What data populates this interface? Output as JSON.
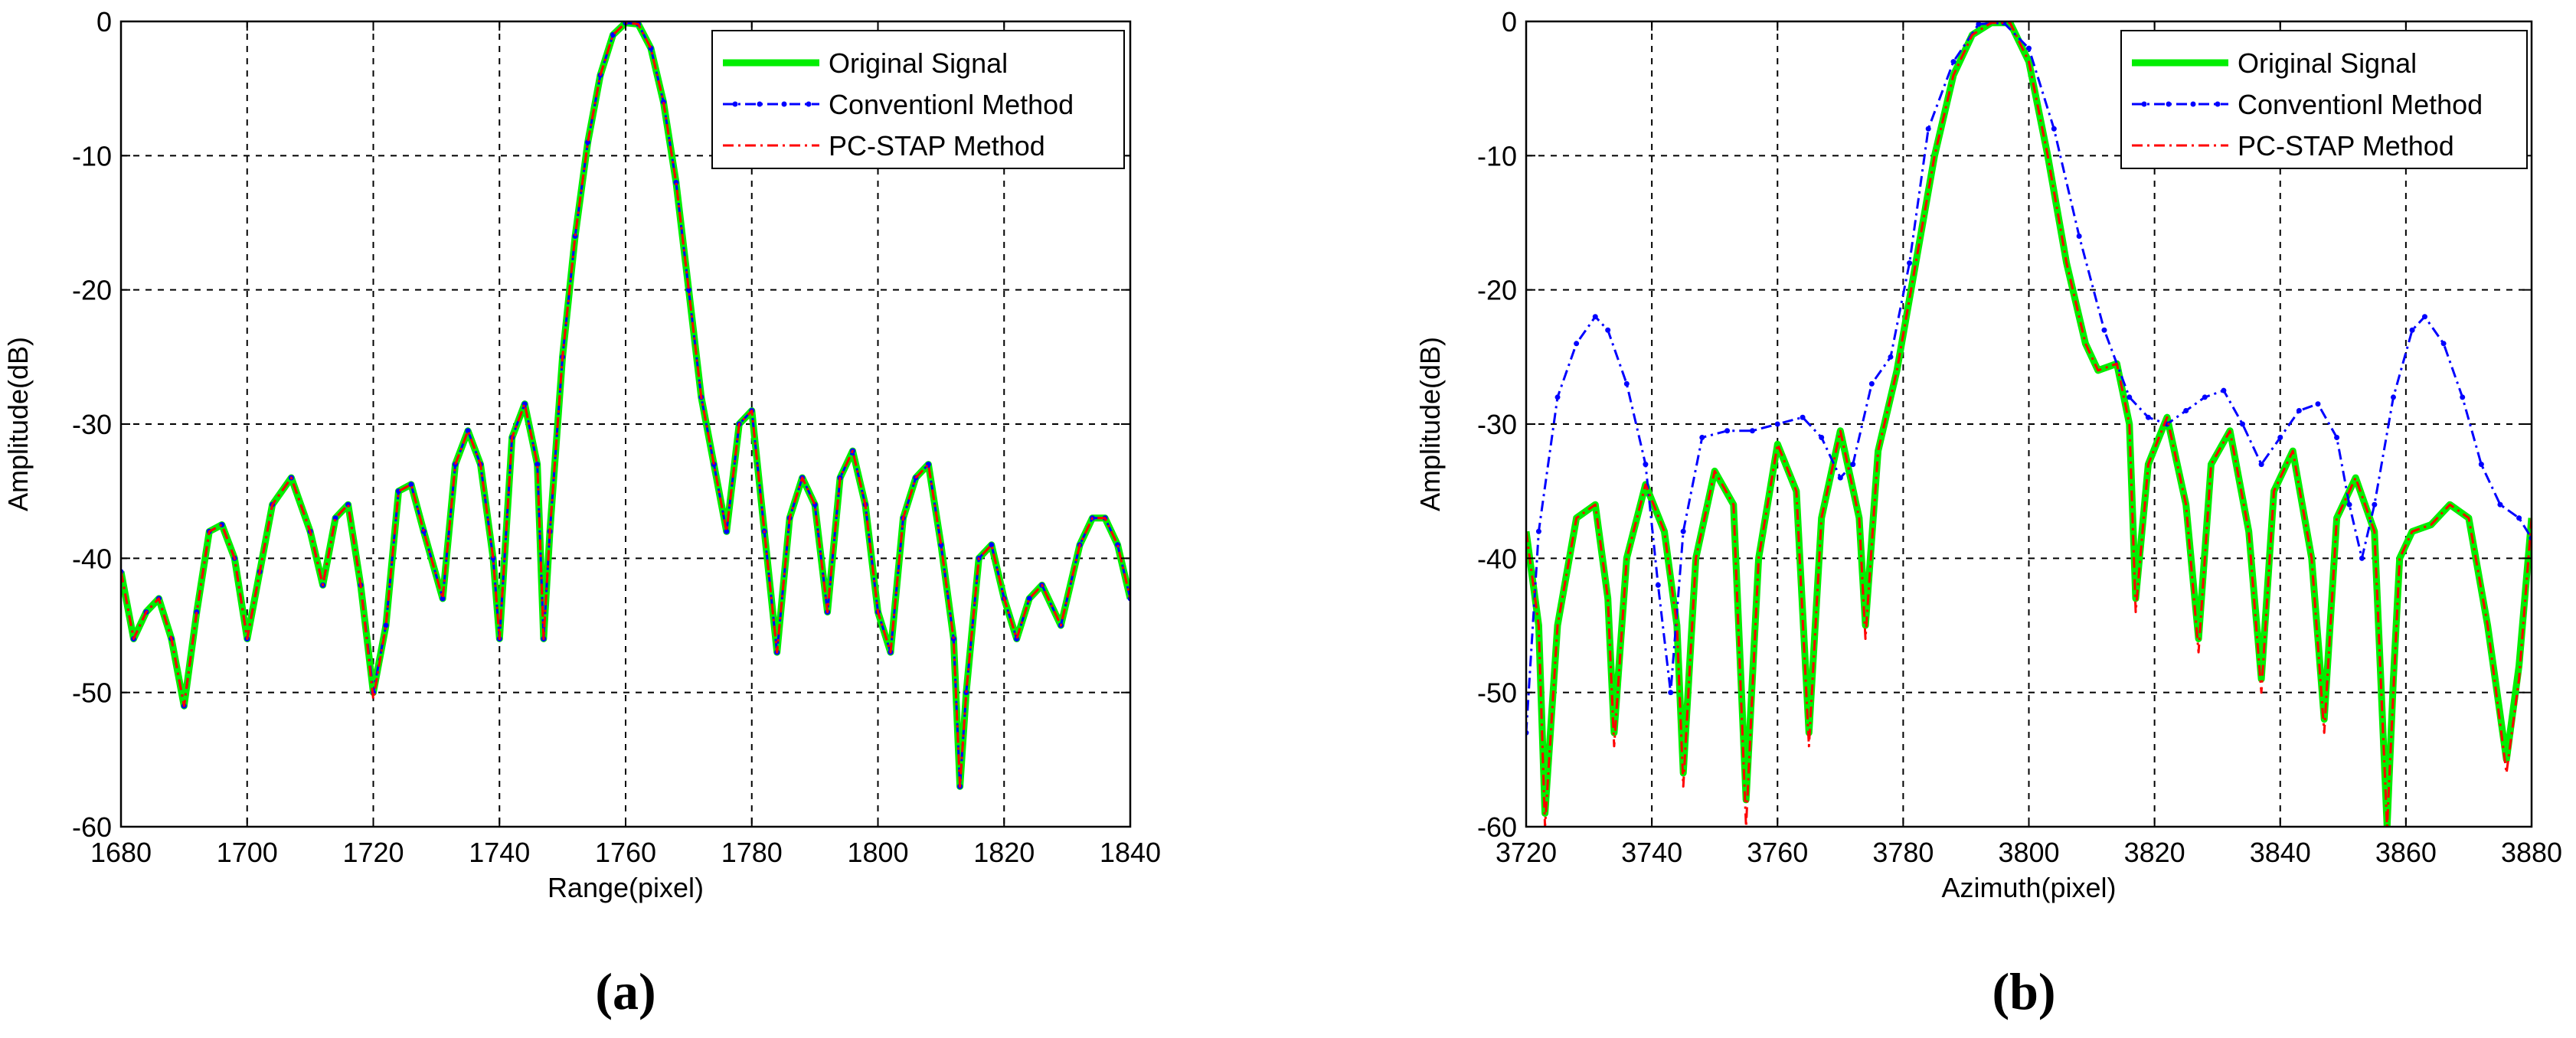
{
  "chart_data": [
    {
      "type": "line",
      "panel_label": "(a)",
      "xlabel": "Range(pixel)",
      "ylabel": "Amplitude(dB)",
      "xlim": [
        1680,
        1840
      ],
      "ylim": [
        -60,
        0
      ],
      "xticks": [
        1680,
        1700,
        1720,
        1740,
        1760,
        1780,
        1800,
        1820,
        1840
      ],
      "yticks": [
        0,
        -10,
        -20,
        -30,
        -40,
        -50,
        -60
      ],
      "grid": true,
      "legend_position": "top-right",
      "series": [
        {
          "name": "Original Signal",
          "color": "#00ee00",
          "style": "solid-thick",
          "x": [
            1680,
            1682,
            1684,
            1686,
            1688,
            1690,
            1692,
            1694,
            1696,
            1698,
            1700,
            1702,
            1704,
            1707,
            1710,
            1712,
            1714,
            1716,
            1718,
            1720,
            1722,
            1724,
            1726,
            1728,
            1731,
            1733,
            1735,
            1737,
            1739,
            1740,
            1742,
            1744,
            1746,
            1747,
            1748,
            1750,
            1752,
            1754,
            1756,
            1758,
            1760,
            1762,
            1764,
            1766,
            1768,
            1770,
            1772,
            1774,
            1776,
            1778,
            1780,
            1782,
            1784,
            1786,
            1788,
            1790,
            1792,
            1794,
            1796,
            1798,
            1800,
            1802,
            1804,
            1806,
            1808,
            1810,
            1812,
            1813,
            1814,
            1816,
            1818,
            1820,
            1822,
            1824,
            1826,
            1829,
            1832,
            1834,
            1836,
            1838,
            1840
          ],
          "y": [
            -41,
            -46,
            -44,
            -43,
            -46,
            -51,
            -44,
            -38,
            -37.5,
            -40,
            -46,
            -41,
            -36,
            -34,
            -38,
            -42,
            -37,
            -36,
            -42,
            -50,
            -45,
            -35,
            -34.5,
            -38,
            -43,
            -33,
            -30.5,
            -33,
            -40,
            -46,
            -31,
            -28.5,
            -33,
            -46,
            -38,
            -25,
            -16,
            -9,
            -4,
            -1,
            -0.1,
            -0.2,
            -2,
            -6,
            -12,
            -20,
            -28,
            -33,
            -38,
            -30,
            -29,
            -38,
            -47,
            -37,
            -34,
            -36,
            -44,
            -34,
            -32,
            -36,
            -44,
            -47,
            -37,
            -34,
            -33,
            -39,
            -46,
            -57,
            -50,
            -40,
            -39,
            -43,
            -46,
            -43,
            -42,
            -45,
            -39,
            -37,
            -37,
            -39,
            -43
          ]
        },
        {
          "name": "Conventionl Method",
          "color": "#0000ff",
          "style": "dash-dot-marker",
          "x": [
            1680,
            1682,
            1684,
            1686,
            1688,
            1690,
            1692,
            1694,
            1696,
            1698,
            1700,
            1702,
            1704,
            1707,
            1710,
            1712,
            1714,
            1716,
            1718,
            1720,
            1722,
            1724,
            1726,
            1728,
            1731,
            1733,
            1735,
            1737,
            1739,
            1740,
            1742,
            1744,
            1746,
            1747,
            1748,
            1750,
            1752,
            1754,
            1756,
            1758,
            1760,
            1762,
            1764,
            1766,
            1768,
            1770,
            1772,
            1774,
            1776,
            1778,
            1780,
            1782,
            1784,
            1786,
            1788,
            1790,
            1792,
            1794,
            1796,
            1798,
            1800,
            1802,
            1804,
            1806,
            1808,
            1810,
            1812,
            1813,
            1814,
            1816,
            1818,
            1820,
            1822,
            1824,
            1826,
            1829,
            1832,
            1834,
            1836,
            1838,
            1840
          ],
          "y": [
            -41,
            -46,
            -44,
            -43,
            -46,
            -51,
            -44,
            -38,
            -37.5,
            -40,
            -46,
            -41,
            -36,
            -34,
            -38,
            -42,
            -37,
            -36,
            -42,
            -50,
            -45,
            -35,
            -34.5,
            -38,
            -43,
            -33,
            -30.5,
            -33,
            -40,
            -46,
            -31,
            -28.5,
            -33,
            -46,
            -38,
            -25,
            -16,
            -9,
            -4,
            -1,
            -0.1,
            -0.2,
            -2,
            -6,
            -12,
            -20,
            -28,
            -33,
            -38,
            -30,
            -29,
            -38,
            -47,
            -37,
            -34,
            -36,
            -44,
            -34,
            -32,
            -36,
            -44,
            -47,
            -37,
            -34,
            -33,
            -39,
            -46,
            -57,
            -50,
            -40,
            -39,
            -43,
            -46,
            -43,
            -42,
            -45,
            -39,
            -37,
            -37,
            -39,
            -43
          ]
        },
        {
          "name": "PC-STAP Method",
          "color": "#ff0000",
          "style": "dash-dot",
          "x": [
            1680,
            1682,
            1684,
            1686,
            1688,
            1690,
            1692,
            1694,
            1696,
            1698,
            1700,
            1702,
            1704,
            1707,
            1710,
            1712,
            1714,
            1716,
            1718,
            1720,
            1722,
            1724,
            1726,
            1728,
            1731,
            1733,
            1735,
            1737,
            1739,
            1740,
            1742,
            1744,
            1746,
            1747,
            1748,
            1750,
            1752,
            1754,
            1756,
            1758,
            1760,
            1762,
            1764,
            1766,
            1768,
            1770,
            1772,
            1774,
            1776,
            1778,
            1780,
            1782,
            1784,
            1786,
            1788,
            1790,
            1792,
            1794,
            1796,
            1798,
            1800,
            1802,
            1804,
            1806,
            1808,
            1810,
            1812,
            1813,
            1814,
            1816,
            1818,
            1820,
            1822,
            1824,
            1826,
            1829,
            1832,
            1834,
            1836,
            1838,
            1840
          ],
          "y": [
            -41,
            -46,
            -44,
            -43,
            -46,
            -51,
            -44,
            -38,
            -37.5,
            -40,
            -46,
            -41,
            -36,
            -34,
            -38,
            -42,
            -37,
            -36,
            -42,
            -50.5,
            -45,
            -35,
            -34.5,
            -38,
            -43,
            -33,
            -30.5,
            -33,
            -40,
            -46,
            -31,
            -28.5,
            -33,
            -46,
            -38,
            -25,
            -16,
            -9,
            -4,
            -1,
            -0.1,
            -0.2,
            -2,
            -6,
            -12,
            -20,
            -28,
            -33,
            -38,
            -30,
            -29,
            -38,
            -47,
            -37,
            -34,
            -36,
            -44,
            -34,
            -32,
            -36,
            -44,
            -47,
            -37,
            -34,
            -33,
            -39,
            -46,
            -57,
            -50,
            -40,
            -39,
            -43,
            -46,
            -43,
            -42,
            -45,
            -39,
            -37,
            -37,
            -39,
            -43
          ]
        }
      ]
    },
    {
      "type": "line",
      "panel_label": "(b)",
      "xlabel": "Azimuth(pixel)",
      "ylabel": "Amplitude(dB)",
      "xlim": [
        3720,
        3880
      ],
      "ylim": [
        -60,
        0
      ],
      "xticks": [
        3720,
        3740,
        3760,
        3780,
        3800,
        3820,
        3840,
        3860,
        3880
      ],
      "yticks": [
        0,
        -10,
        -20,
        -30,
        -40,
        -50,
        -60
      ],
      "grid": true,
      "legend_position": "top-right",
      "series": [
        {
          "name": "Original Signal",
          "color": "#00ee00",
          "style": "solid-thick",
          "x": [
            3720,
            3722,
            3723,
            3725,
            3728,
            3731,
            3733,
            3734,
            3736,
            3739,
            3742,
            3744,
            3745,
            3747,
            3750,
            3753,
            3755,
            3757,
            3760,
            3763,
            3765,
            3767,
            3770,
            3773,
            3774,
            3776,
            3779,
            3782,
            3785,
            3788,
            3791,
            3794,
            3797,
            3800,
            3803,
            3806,
            3809,
            3811,
            3814,
            3816,
            3817,
            3819,
            3822,
            3825,
            3827,
            3829,
            3832,
            3835,
            3837,
            3839,
            3842,
            3845,
            3847,
            3849,
            3852,
            3855,
            3857,
            3858,
            3859,
            3861,
            3864,
            3867,
            3870,
            3873,
            3876,
            3878,
            3880
          ],
          "y": [
            -38,
            -45,
            -59,
            -45,
            -37,
            -36,
            -43,
            -53,
            -40,
            -34.5,
            -38,
            -45,
            -56,
            -40,
            -33.5,
            -36,
            -58,
            -40,
            -31.5,
            -35,
            -53,
            -37,
            -30.5,
            -37,
            -45,
            -32,
            -26,
            -18,
            -10,
            -4,
            -1,
            -0.1,
            -0.1,
            -3,
            -10,
            -18,
            -24,
            -26,
            -25.5,
            -30,
            -43,
            -33,
            -29.5,
            -36,
            -46,
            -33,
            -30.5,
            -38,
            -49,
            -35,
            -32,
            -40,
            -52,
            -37,
            -34,
            -38,
            -60,
            -49,
            -40,
            -38,
            -37.5,
            -36,
            -37,
            -45,
            -55,
            -48,
            -37
          ]
        },
        {
          "name": "Conventionl Method",
          "color": "#0000ff",
          "style": "dash-dot-marker",
          "x": [
            3720,
            3722,
            3725,
            3728,
            3731,
            3733,
            3736,
            3739,
            3741,
            3743,
            3745,
            3748,
            3752,
            3756,
            3760,
            3764,
            3767,
            3770,
            3772,
            3775,
            3778,
            3781,
            3784,
            3788,
            3792,
            3796,
            3800,
            3804,
            3808,
            3812,
            3816,
            3819,
            3822,
            3825,
            3828,
            3831,
            3834,
            3837,
            3840,
            3843,
            3846,
            3849,
            3851,
            3853,
            3855,
            3858,
            3861,
            3863,
            3866,
            3869,
            3872,
            3875,
            3878,
            3880
          ],
          "y": [
            -53,
            -38,
            -28,
            -24,
            -22,
            -23,
            -27,
            -33,
            -42,
            -50,
            -38,
            -31,
            -30.5,
            -30.5,
            -30,
            -29.5,
            -31,
            -34,
            -33,
            -27,
            -25,
            -18,
            -8,
            -3,
            -0.2,
            -0.1,
            -2,
            -8,
            -16,
            -23,
            -28,
            -29.5,
            -30,
            -29,
            -28,
            -27.5,
            -30,
            -33,
            -31,
            -29,
            -28.5,
            -31,
            -36,
            -40,
            -36,
            -28,
            -23,
            -22,
            -24,
            -28,
            -33,
            -36,
            -37,
            -38.5
          ]
        },
        {
          "name": "PC-STAP Method",
          "color": "#ff0000",
          "style": "dash-dot",
          "x": [
            3720,
            3722,
            3723,
            3725,
            3728,
            3731,
            3733,
            3734,
            3736,
            3739,
            3742,
            3744,
            3745,
            3747,
            3750,
            3753,
            3755,
            3757,
            3760,
            3763,
            3765,
            3767,
            3770,
            3773,
            3774,
            3776,
            3779,
            3782,
            3785,
            3788,
            3791,
            3794,
            3797,
            3800,
            3803,
            3806,
            3809,
            3811,
            3814,
            3816,
            3817,
            3819,
            3822,
            3825,
            3827,
            3829,
            3832,
            3835,
            3837,
            3839,
            3842,
            3845,
            3847,
            3849,
            3852,
            3855,
            3857,
            3858,
            3859,
            3861,
            3864,
            3867,
            3870,
            3873,
            3876,
            3878,
            3880
          ],
          "y": [
            -38,
            -45,
            -60,
            -45,
            -37,
            -36,
            -43,
            -54,
            -40,
            -34.5,
            -38,
            -45,
            -57,
            -40,
            -33.5,
            -36,
            -60,
            -40,
            -31.5,
            -35,
            -54,
            -37,
            -30.5,
            -37,
            -46,
            -32,
            -26,
            -18,
            -10,
            -4,
            -1,
            -0.1,
            -0.1,
            -3,
            -10,
            -18,
            -24,
            -26,
            -25.5,
            -30,
            -44,
            -33,
            -29.5,
            -36,
            -47,
            -33,
            -30.5,
            -38,
            -50,
            -35,
            -32,
            -40,
            -53,
            -37,
            -34,
            -38,
            -60,
            -50,
            -40,
            -38,
            -37.5,
            -36,
            -37,
            -45,
            -56,
            -49,
            -37
          ]
        }
      ]
    }
  ]
}
